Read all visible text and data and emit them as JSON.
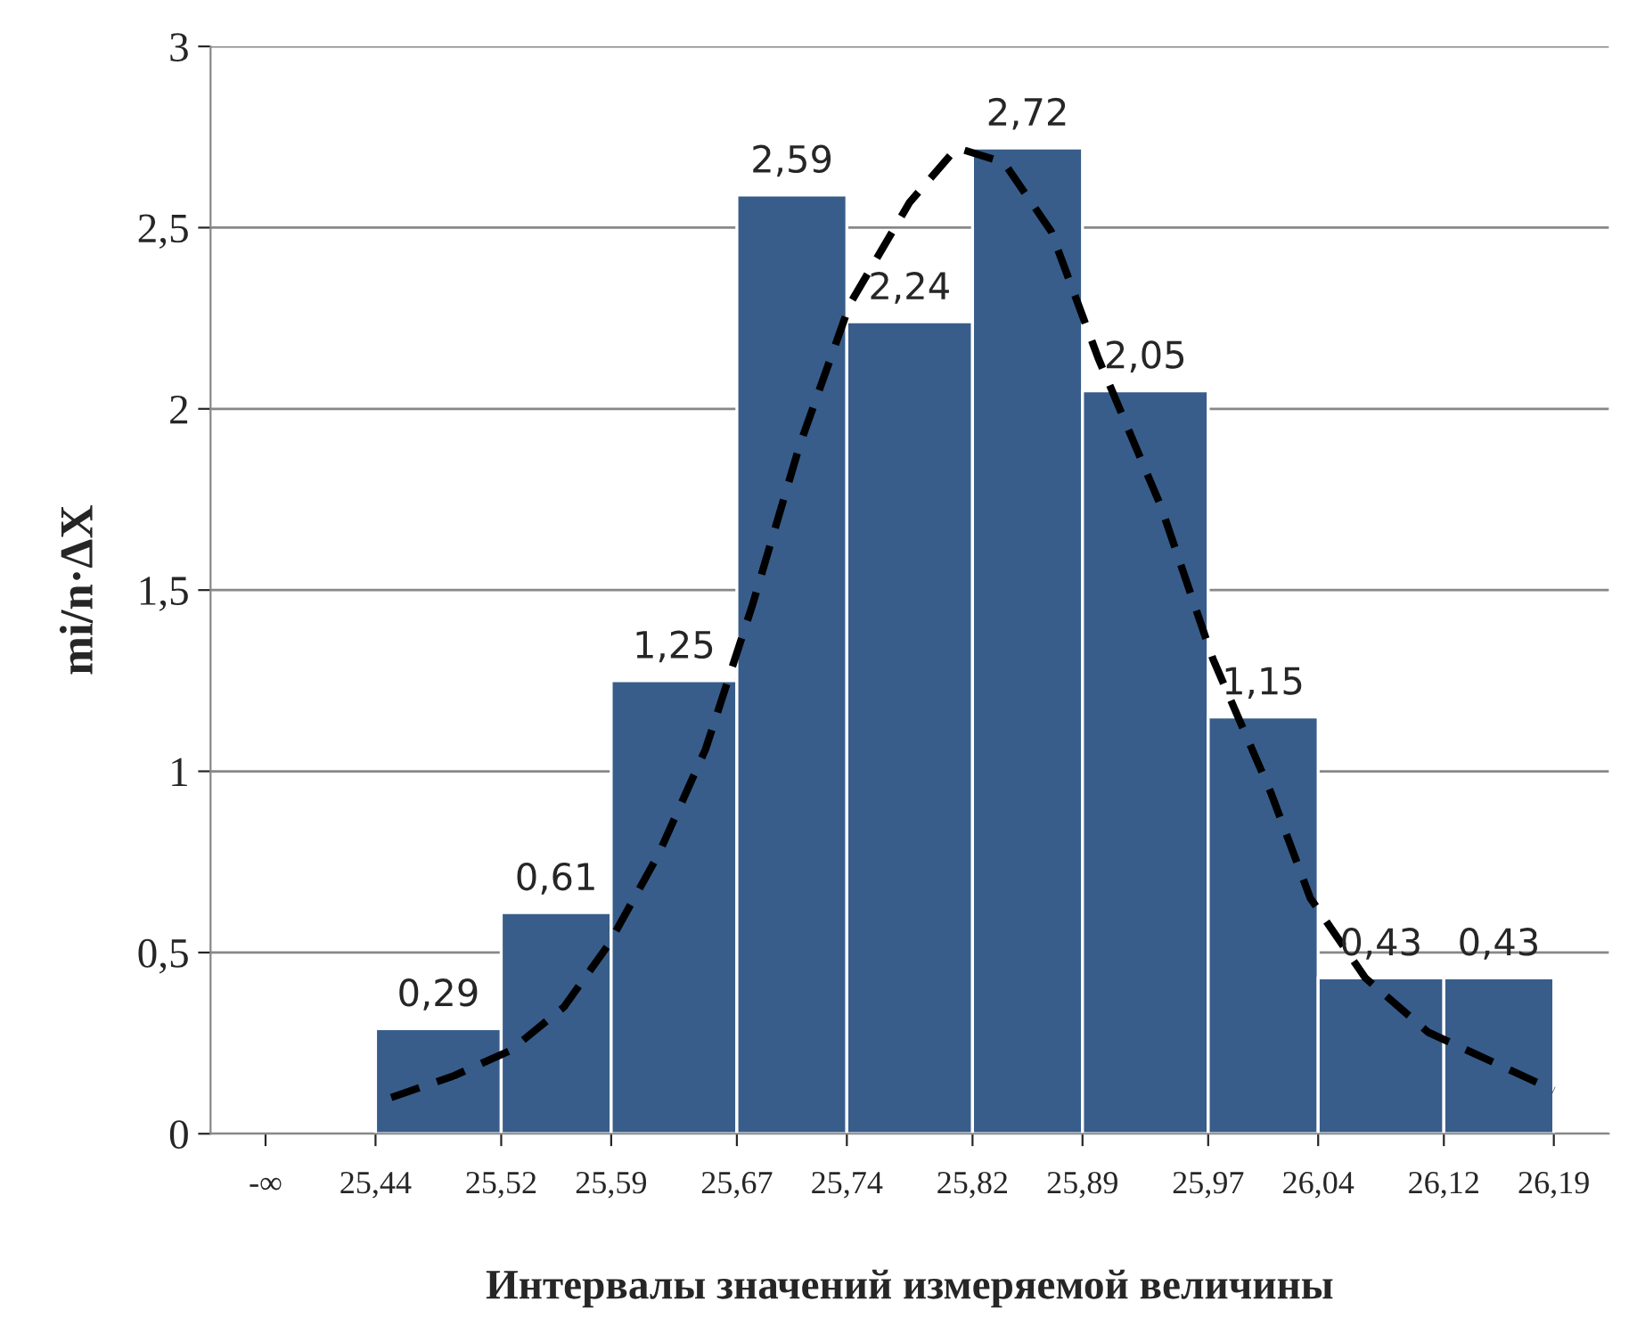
{
  "chart_data": {
    "type": "histogram",
    "xlabel": "Интервалы значений измеряемой величины",
    "ylabel": "mi/n·ΔX",
    "bins": [
      25.44,
      25.52,
      25.59,
      25.67,
      25.74,
      25.82,
      25.89,
      25.97,
      26.04,
      26.12,
      26.19
    ],
    "values": [
      0.29,
      0.61,
      1.25,
      2.59,
      2.24,
      2.72,
      2.05,
      1.15,
      0.43,
      0.43
    ],
    "color": "#385d8a",
    "value_labels": [
      "0,29",
      "0,61",
      "1,25",
      "2,59",
      "2,24",
      "2,72",
      "2,05",
      "1,15",
      "0,43",
      "0,43"
    ],
    "series": [
      {
        "type": "line",
        "color": "#000000",
        "line_style": "dashed",
        "marker": "none",
        "x": [
          25.45,
          25.49,
          25.526,
          25.56,
          25.588,
          25.62,
          25.65,
          25.68,
          25.71,
          25.742,
          25.78,
          25.81,
          25.84,
          25.87,
          25.9,
          25.94,
          25.973,
          26.01,
          26.035,
          26.07,
          26.11,
          26.16,
          26.19
        ],
        "values": [
          0.1,
          0.16,
          0.23,
          0.35,
          0.52,
          0.77,
          1.06,
          1.46,
          1.9,
          2.29,
          2.57,
          2.72,
          2.68,
          2.49,
          2.14,
          1.73,
          1.31,
          0.94,
          0.65,
          0.43,
          0.28,
          0.18,
          0.12
        ]
      }
    ],
    "xlim": [
      25.335,
      26.225
    ],
    "xticks": [
      {
        "value": 25.37,
        "label": "-∞"
      },
      {
        "value": 25.44,
        "label": "25,44"
      },
      {
        "value": 25.52,
        "label": "25,52"
      },
      {
        "value": 25.59,
        "label": "25,59"
      },
      {
        "value": 25.67,
        "label": "25,67"
      },
      {
        "value": 25.74,
        "label": "25,74"
      },
      {
        "value": 25.82,
        "label": "25,82"
      },
      {
        "value": 25.89,
        "label": "25,89"
      },
      {
        "value": 25.97,
        "label": "25,97"
      },
      {
        "value": 26.04,
        "label": "26,04"
      },
      {
        "value": 26.12,
        "label": "26,12"
      },
      {
        "value": 26.19,
        "label": "26,19"
      }
    ],
    "ylim": [
      0,
      3
    ],
    "yticks": [
      0,
      {
        "value": 0.5,
        "label": "0,5"
      },
      1,
      {
        "value": 1.5,
        "label": "1,5"
      },
      2,
      {
        "value": 2.5,
        "label": "2,5"
      },
      3
    ],
    "grid": "y",
    "legend": false
  }
}
